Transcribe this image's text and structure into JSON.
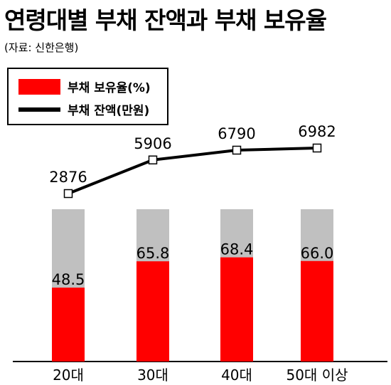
{
  "header": {
    "title": "연령대별 부채 잔액과 부채 보유율",
    "source": "(자료: 신한은행)"
  },
  "chart_data": {
    "type": "bar",
    "categories": [
      "20대",
      "30대",
      "40대",
      "50대 이상"
    ],
    "series": [
      {
        "name": "부채 보유율(%)",
        "type": "bar",
        "values": [
          48.5,
          65.8,
          68.4,
          66.0
        ],
        "labels": [
          "48.5",
          "65.8",
          "68.4",
          "66.0"
        ],
        "color": "#ff0000",
        "background_color": "#c0c0c0"
      },
      {
        "name": "부채 잔액(만원)",
        "type": "line",
        "values": [
          2876,
          5906,
          6790,
          6982
        ],
        "labels": [
          "2876",
          "5906",
          "6790",
          "6982"
        ],
        "color": "#000000"
      }
    ],
    "bar_ylim": [
      0,
      100
    ],
    "legend_position": "top-left",
    "grid": false
  }
}
